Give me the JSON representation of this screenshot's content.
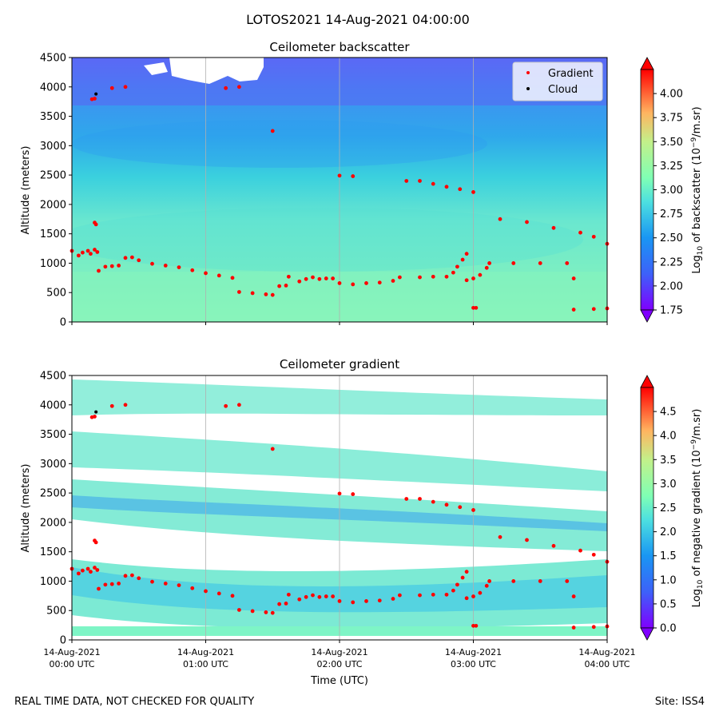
{
  "suptitle": "LOTOS2021 14-Aug-2021 04:00:00",
  "footer": {
    "left": "REAL TIME DATA, NOT CHECKED FOR QUALITY",
    "right": "Site: ISS4"
  },
  "colors": {
    "gradient_marker": "#ff0000",
    "cloud_marker": "#000000",
    "grid": "#b0b0b0"
  },
  "x_axis": {
    "label": "Time (UTC)",
    "ticks": [
      {
        "value": 0,
        "line1": "14-Aug-2021",
        "line2": "00:00 UTC"
      },
      {
        "value": 1,
        "line1": "14-Aug-2021",
        "line2": "01:00 UTC"
      },
      {
        "value": 2,
        "line1": "14-Aug-2021",
        "line2": "02:00 UTC"
      },
      {
        "value": 3,
        "line1": "14-Aug-2021",
        "line2": "03:00 UTC"
      },
      {
        "value": 4,
        "line1": "14-Aug-2021",
        "line2": "04:00 UTC"
      }
    ]
  },
  "chart_data": [
    {
      "type": "heatmap",
      "title": "Ceilometer backscatter",
      "xlabel": "",
      "ylabel": "Altitude (meters)",
      "xlim": [
        0,
        4
      ],
      "ylim": [
        0,
        4500
      ],
      "yticks": [
        "0",
        "500",
        "1000",
        "1500",
        "2000",
        "2500",
        "3000",
        "3500",
        "4000",
        "4500"
      ],
      "colorbar": {
        "label": "Log10 of backscatter (10^-9/m.sr)",
        "range": [
          1.75,
          4.25
        ],
        "ticks": [
          "1.75",
          "2.00",
          "2.25",
          "2.50",
          "2.75",
          "3.00",
          "3.25",
          "3.50",
          "3.75",
          "4.00"
        ]
      },
      "legend": {
        "position": "top-right",
        "entries": [
          "Gradient",
          "Cloud"
        ]
      }
    },
    {
      "type": "heatmap",
      "title": "Ceilometer gradient",
      "xlabel": "Time (UTC)",
      "ylabel": "Altitude (meters)",
      "xlim": [
        0,
        4
      ],
      "ylim": [
        0,
        4500
      ],
      "yticks": [
        "0",
        "500",
        "1000",
        "1500",
        "2000",
        "2500",
        "3000",
        "3500",
        "4000",
        "4500"
      ],
      "colorbar": {
        "label": "Log10 of negative gradient (10^-9/m.sr)",
        "range": [
          0.0,
          5.0
        ],
        "ticks": [
          "0.0",
          "0.5",
          "1.0",
          "1.5",
          "2.0",
          "2.5",
          "3.0",
          "3.5",
          "4.0",
          "4.5"
        ]
      }
    }
  ],
  "series": {
    "gradient_points": [
      [
        0.0,
        1210
      ],
      [
        0.05,
        1130
      ],
      [
        0.08,
        1180
      ],
      [
        0.12,
        1210
      ],
      [
        0.14,
        1160
      ],
      [
        0.17,
        1230
      ],
      [
        0.19,
        1190
      ],
      [
        0.2,
        870
      ],
      [
        0.25,
        940
      ],
      [
        0.3,
        950
      ],
      [
        0.35,
        960
      ],
      [
        0.4,
        1090
      ],
      [
        0.45,
        1100
      ],
      [
        0.5,
        1050
      ],
      [
        0.6,
        990
      ],
      [
        0.7,
        960
      ],
      [
        0.8,
        930
      ],
      [
        0.9,
        880
      ],
      [
        1.0,
        830
      ],
      [
        1.1,
        790
      ],
      [
        1.2,
        750
      ],
      [
        1.25,
        510
      ],
      [
        1.35,
        490
      ],
      [
        1.45,
        470
      ],
      [
        1.5,
        460
      ],
      [
        1.55,
        610
      ],
      [
        1.6,
        620
      ],
      [
        1.62,
        770
      ],
      [
        1.7,
        690
      ],
      [
        1.75,
        730
      ],
      [
        1.8,
        760
      ],
      [
        1.85,
        730
      ],
      [
        1.9,
        740
      ],
      [
        1.95,
        740
      ],
      [
        2.0,
        660
      ],
      [
        2.1,
        640
      ],
      [
        2.2,
        660
      ],
      [
        2.3,
        670
      ],
      [
        2.4,
        700
      ],
      [
        2.45,
        760
      ],
      [
        2.6,
        760
      ],
      [
        2.7,
        770
      ],
      [
        2.8,
        770
      ],
      [
        2.85,
        840
      ],
      [
        2.88,
        940
      ],
      [
        2.92,
        1060
      ],
      [
        2.95,
        1160
      ],
      [
        2.95,
        710
      ],
      [
        3.0,
        740
      ],
      [
        3.05,
        800
      ],
      [
        3.1,
        920
      ],
      [
        3.12,
        1000
      ],
      [
        3.3,
        1000
      ],
      [
        3.5,
        1000
      ],
      [
        3.7,
        1000
      ],
      [
        3.75,
        740
      ],
      [
        3.75,
        210
      ],
      [
        3.9,
        220
      ],
      [
        4.0,
        230
      ],
      [
        3.0,
        240
      ],
      [
        3.02,
        240
      ],
      [
        0.17,
        1690
      ],
      [
        0.18,
        1660
      ],
      [
        0.15,
        3790
      ],
      [
        0.17,
        3800
      ],
      [
        0.3,
        3980
      ],
      [
        0.4,
        4000
      ],
      [
        1.15,
        3980
      ],
      [
        1.25,
        4000
      ],
      [
        1.5,
        3250
      ],
      [
        2.0,
        2490
      ],
      [
        2.1,
        2480
      ],
      [
        2.5,
        2400
      ],
      [
        2.6,
        2400
      ],
      [
        2.7,
        2350
      ],
      [
        2.8,
        2300
      ],
      [
        2.9,
        2260
      ],
      [
        3.0,
        2210
      ],
      [
        3.2,
        1750
      ],
      [
        3.4,
        1700
      ],
      [
        3.6,
        1600
      ],
      [
        3.8,
        1520
      ],
      [
        3.9,
        1450
      ],
      [
        4.0,
        1330
      ]
    ],
    "cloud_points": [
      [
        0.18,
        3880
      ]
    ]
  }
}
